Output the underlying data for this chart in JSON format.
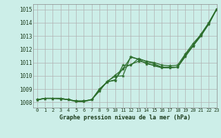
{
  "title": "Graphe pression niveau de la mer (hPa)",
  "bg_color": "#cceee8",
  "grid_color": "#b0b0b0",
  "line_color": "#2d6e2d",
  "marker_color": "#2d6e2d",
  "xlim": [
    -0.5,
    23
  ],
  "ylim": [
    1007.6,
    1015.4
  ],
  "xticks": [
    0,
    1,
    2,
    3,
    4,
    5,
    6,
    7,
    8,
    9,
    10,
    11,
    12,
    13,
    14,
    15,
    16,
    17,
    18,
    19,
    20,
    21,
    22,
    23
  ],
  "yticks": [
    1008,
    1009,
    1010,
    1011,
    1012,
    1013,
    1014,
    1015
  ],
  "series": [
    [
      1008.2,
      1008.3,
      1008.3,
      1008.3,
      1008.2,
      1008.1,
      1008.1,
      1008.2,
      1008.85,
      1009.6,
      1009.95,
      1010.0,
      1011.45,
      1011.25,
      1011.1,
      1011.0,
      1010.8,
      1010.75,
      1010.8,
      1011.65,
      1012.45,
      1013.1,
      1014.0,
      1015.0
    ],
    [
      1008.2,
      1008.3,
      1008.3,
      1008.3,
      1008.2,
      1008.1,
      1008.1,
      1008.2,
      1009.0,
      1009.55,
      1009.65,
      1010.8,
      1010.8,
      1011.3,
      1011.1,
      1010.9,
      1010.65,
      1010.65,
      1010.65,
      1011.5,
      1012.3,
      1013.05,
      1013.9,
      1015.0
    ],
    [
      1008.2,
      1008.3,
      1008.3,
      1008.3,
      1008.2,
      1008.1,
      1008.1,
      1008.2,
      1009.0,
      1009.55,
      1009.7,
      1010.55,
      1010.85,
      1011.1,
      1011.0,
      1010.75,
      1010.6,
      1010.6,
      1010.65,
      1011.45,
      1012.25,
      1013.0,
      1013.9,
      1015.0
    ],
    [
      1008.15,
      1008.3,
      1008.3,
      1008.25,
      1008.2,
      1008.05,
      1008.05,
      1008.2,
      1008.9,
      1009.55,
      1010.05,
      1010.5,
      1011.4,
      1011.25,
      1010.9,
      1010.8,
      1010.65,
      1010.6,
      1010.65,
      1011.6,
      1012.3,
      1013.15,
      1014.0,
      1015.05
    ]
  ]
}
